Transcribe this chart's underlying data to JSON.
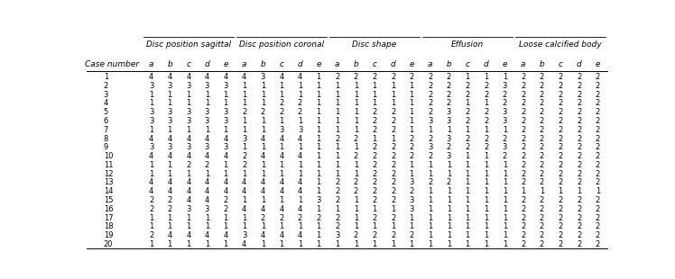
{
  "col_groups": [
    {
      "label": "Disc position sagittal",
      "ncols": 5
    },
    {
      "label": "Disc position coronal",
      "ncols": 5
    },
    {
      "label": "Disc shape",
      "ncols": 5
    },
    {
      "label": "Effusion",
      "ncols": 5
    },
    {
      "label": "Loose calcified body",
      "ncols": 5
    }
  ],
  "sub_headers": [
    "a",
    "b",
    "c",
    "d",
    "e"
  ],
  "case_col": "Case number",
  "rows": [
    [
      1,
      4,
      4,
      4,
      4,
      4,
      4,
      3,
      4,
      4,
      1,
      2,
      2,
      2,
      2,
      2,
      2,
      2,
      1,
      1,
      1,
      2,
      2,
      2,
      2,
      2
    ],
    [
      2,
      3,
      3,
      3,
      3,
      3,
      1,
      1,
      1,
      1,
      1,
      1,
      1,
      1,
      1,
      1,
      2,
      2,
      2,
      2,
      3,
      2,
      2,
      2,
      2,
      2
    ],
    [
      3,
      1,
      1,
      1,
      1,
      1,
      1,
      1,
      1,
      1,
      1,
      1,
      1,
      1,
      1,
      1,
      2,
      2,
      2,
      2,
      2,
      2,
      2,
      2,
      2,
      2
    ],
    [
      4,
      1,
      1,
      1,
      1,
      1,
      1,
      1,
      2,
      2,
      1,
      1,
      1,
      1,
      1,
      1,
      2,
      2,
      1,
      1,
      2,
      2,
      2,
      2,
      2,
      2
    ],
    [
      5,
      3,
      3,
      3,
      3,
      3,
      2,
      2,
      2,
      2,
      1,
      1,
      1,
      2,
      2,
      1,
      2,
      3,
      2,
      2,
      3,
      2,
      2,
      2,
      2,
      2
    ],
    [
      6,
      3,
      3,
      3,
      3,
      3,
      1,
      1,
      1,
      1,
      1,
      1,
      1,
      2,
      2,
      1,
      3,
      3,
      2,
      2,
      3,
      2,
      2,
      2,
      2,
      2
    ],
    [
      7,
      1,
      1,
      1,
      1,
      1,
      1,
      1,
      3,
      3,
      1,
      1,
      1,
      2,
      2,
      1,
      1,
      1,
      1,
      1,
      1,
      2,
      2,
      2,
      2,
      2
    ],
    [
      8,
      4,
      4,
      4,
      4,
      4,
      3,
      4,
      4,
      4,
      1,
      2,
      2,
      1,
      1,
      2,
      2,
      3,
      2,
      2,
      2,
      2,
      2,
      2,
      2,
      2
    ],
    [
      9,
      3,
      3,
      3,
      3,
      3,
      1,
      1,
      1,
      1,
      1,
      1,
      1,
      2,
      2,
      2,
      3,
      2,
      2,
      2,
      3,
      2,
      2,
      2,
      2,
      2
    ],
    [
      10,
      4,
      4,
      4,
      4,
      4,
      2,
      4,
      4,
      4,
      1,
      1,
      2,
      2,
      2,
      2,
      2,
      3,
      1,
      1,
      2,
      2,
      2,
      2,
      2,
      2
    ],
    [
      11,
      1,
      1,
      2,
      2,
      1,
      2,
      1,
      1,
      1,
      1,
      1,
      1,
      2,
      2,
      1,
      1,
      1,
      1,
      1,
      1,
      2,
      2,
      2,
      2,
      2
    ],
    [
      12,
      1,
      1,
      1,
      1,
      1,
      1,
      1,
      1,
      1,
      1,
      1,
      1,
      2,
      2,
      1,
      1,
      1,
      1,
      1,
      1,
      2,
      2,
      2,
      2,
      2
    ],
    [
      13,
      4,
      4,
      4,
      4,
      4,
      4,
      4,
      4,
      4,
      1,
      2,
      2,
      2,
      2,
      3,
      2,
      2,
      1,
      1,
      1,
      2,
      2,
      2,
      2,
      2
    ],
    [
      14,
      4,
      4,
      4,
      4,
      4,
      4,
      4,
      4,
      4,
      1,
      2,
      2,
      2,
      2,
      2,
      1,
      1,
      1,
      1,
      1,
      1,
      1,
      1,
      1,
      1
    ],
    [
      15,
      2,
      2,
      4,
      4,
      2,
      1,
      1,
      1,
      1,
      3,
      2,
      1,
      2,
      2,
      3,
      1,
      1,
      1,
      1,
      1,
      2,
      2,
      2,
      2,
      2
    ],
    [
      16,
      2,
      2,
      3,
      3,
      2,
      4,
      4,
      4,
      4,
      1,
      1,
      1,
      1,
      1,
      3,
      1,
      1,
      1,
      1,
      1,
      2,
      2,
      2,
      2,
      2
    ],
    [
      17,
      1,
      1,
      1,
      1,
      1,
      1,
      2,
      2,
      2,
      2,
      2,
      1,
      2,
      2,
      1,
      1,
      1,
      1,
      1,
      1,
      2,
      2,
      2,
      2,
      2
    ],
    [
      18,
      1,
      1,
      1,
      1,
      1,
      1,
      1,
      1,
      1,
      1,
      2,
      1,
      1,
      1,
      1,
      1,
      1,
      1,
      1,
      1,
      2,
      2,
      2,
      2,
      2
    ],
    [
      19,
      2,
      4,
      4,
      4,
      4,
      3,
      4,
      4,
      4,
      1,
      3,
      2,
      2,
      2,
      2,
      1,
      1,
      1,
      1,
      1,
      2,
      2,
      2,
      2,
      2
    ],
    [
      20,
      1,
      1,
      1,
      1,
      1,
      4,
      1,
      1,
      1,
      1,
      1,
      1,
      1,
      1,
      1,
      1,
      1,
      1,
      1,
      1,
      2,
      2,
      2,
      2,
      2
    ]
  ],
  "bg_color": "#ffffff",
  "text_color": "#000000",
  "line_color": "#000000",
  "group_fs": 6.5,
  "sub_fs": 6.5,
  "data_fs": 6.0,
  "case_fs": 6.5
}
